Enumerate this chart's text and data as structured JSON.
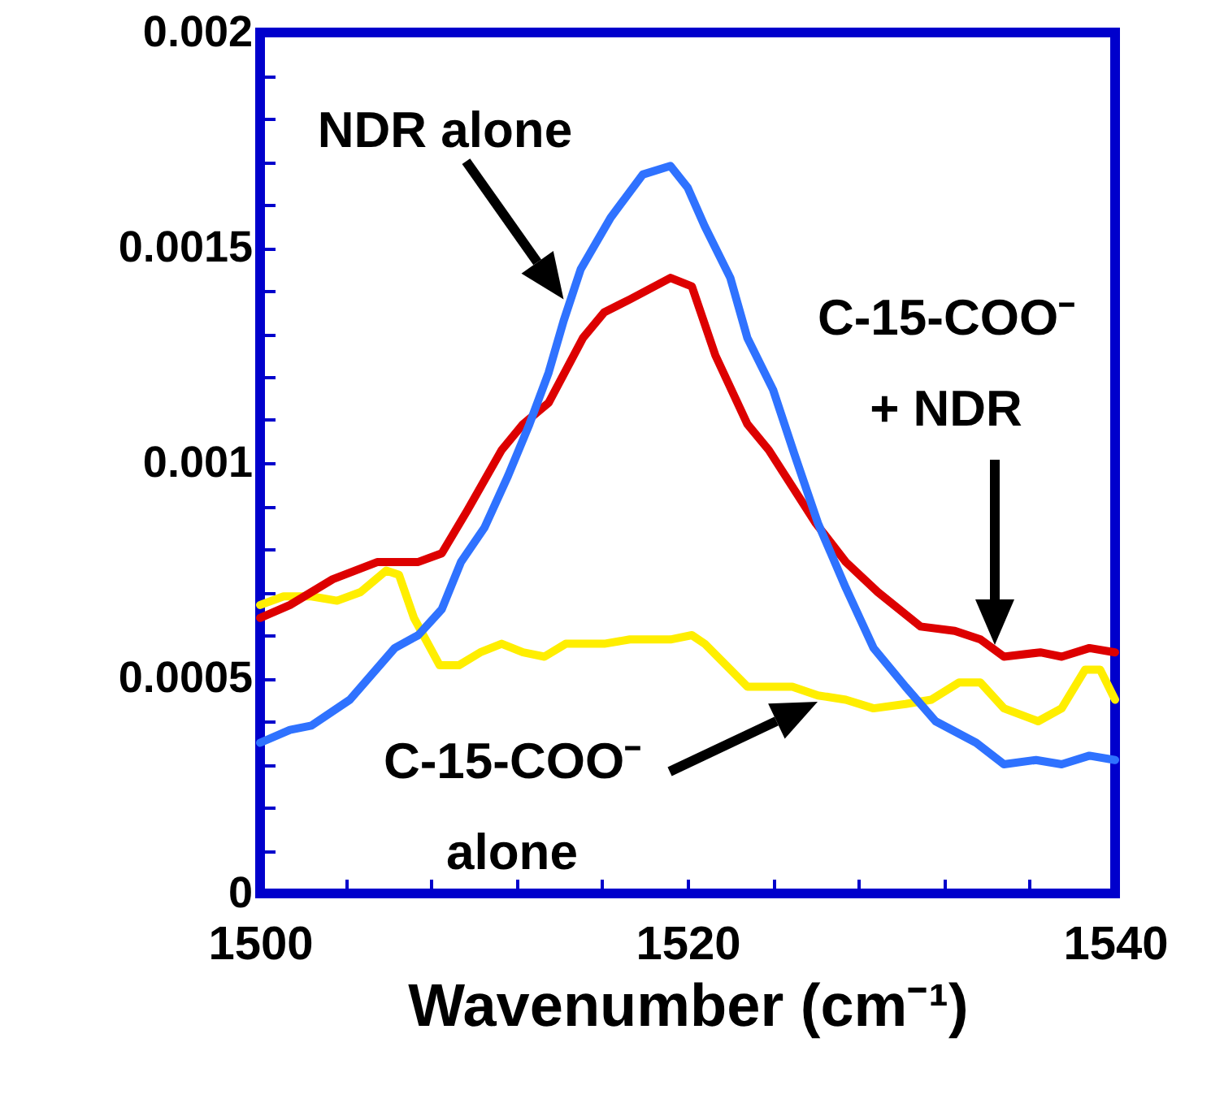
{
  "chart_data": {
    "type": "line",
    "xlabel": "Wavenumber (cm⁻¹)",
    "xlim": [
      1500,
      1540
    ],
    "ylim": [
      0,
      0.002
    ],
    "xticks": [
      1500,
      {
        "value": 1504,
        "label": null
      },
      {
        "value": 1508,
        "label": null
      },
      {
        "value": 1512,
        "label": null
      },
      {
        "value": 1516,
        "label": null
      },
      1520,
      {
        "value": 1524,
        "label": null
      },
      {
        "value": 1528,
        "label": null
      },
      {
        "value": 1532,
        "label": null
      },
      {
        "value": 1536,
        "label": null
      },
      1540
    ],
    "yticks": [
      0,
      {
        "value": 0.0001,
        "label": null
      },
      {
        "value": 0.0002,
        "label": null
      },
      {
        "value": 0.0003,
        "label": null
      },
      {
        "value": 0.0004,
        "label": null
      },
      0.0005,
      {
        "value": 0.0006,
        "label": null
      },
      {
        "value": 0.0007,
        "label": null
      },
      {
        "value": 0.0008,
        "label": null
      },
      {
        "value": 0.0009,
        "label": null
      },
      0.001,
      {
        "value": 0.0011,
        "label": null
      },
      {
        "value": 0.0012,
        "label": null
      },
      {
        "value": 0.0013,
        "label": null
      },
      {
        "value": 0.0014,
        "label": null
      },
      0.0015,
      {
        "value": 0.0016,
        "label": null
      },
      {
        "value": 0.0017,
        "label": null
      },
      {
        "value": 0.0018,
        "label": null
      },
      {
        "value": 0.0019,
        "label": null
      },
      0.002
    ],
    "grid": false,
    "marker": "none",
    "line_style": "solid",
    "series": [
      {
        "color": "#ffee00",
        "x": [
          1500,
          1501.1,
          1502.4,
          1503.6,
          1504.7,
          1505.9,
          1506.5,
          1507.2,
          1508.4,
          1509.3,
          1510.3,
          1511.3,
          1512.3,
          1513.3,
          1514.3,
          1516.1,
          1517.3,
          1519.2,
          1520.2,
          1520.8,
          1521.8,
          1522.8,
          1524.9,
          1526.1,
          1527.4,
          1528.7,
          1530.2,
          1531.4,
          1532.7,
          1533.7,
          1534.8,
          1536.4,
          1537.5,
          1538.6,
          1539.3,
          1540
        ],
        "values": [
          0.00067,
          0.00069,
          0.00069,
          0.00068,
          0.0007,
          0.00075,
          0.00074,
          0.00064,
          0.00053,
          0.00053,
          0.00056,
          0.00058,
          0.00056,
          0.00055,
          0.00058,
          0.00058,
          0.00059,
          0.00059,
          0.0006,
          0.00058,
          0.00053,
          0.00048,
          0.00048,
          0.00046,
          0.00045,
          0.00043,
          0.00044,
          0.00045,
          0.00049,
          0.00049,
          0.00043,
          0.0004,
          0.00043,
          0.00052,
          0.00052,
          0.00045
        ]
      },
      {
        "color": "#dd0000",
        "x": [
          1500,
          1501.4,
          1503.4,
          1505.5,
          1506.5,
          1507.4,
          1508.5,
          1509.7,
          1511.3,
          1512.3,
          1513.5,
          1515.1,
          1516.1,
          1517.3,
          1519.2,
          1520.2,
          1521.3,
          1522.8,
          1523.8,
          1526,
          1527.4,
          1528.9,
          1530.9,
          1532.5,
          1533.7,
          1534.8,
          1536.5,
          1537.5,
          1538.8,
          1540
        ],
        "values": [
          0.00064,
          0.00067,
          0.00073,
          0.00077,
          0.00077,
          0.00077,
          0.00079,
          0.00089,
          0.00103,
          0.00109,
          0.00114,
          0.00129,
          0.00135,
          0.00138,
          0.00143,
          0.00141,
          0.00125,
          0.00109,
          0.00103,
          0.00086,
          0.00077,
          0.0007,
          0.00062,
          0.00061,
          0.00059,
          0.00055,
          0.00056,
          0.00055,
          0.00057,
          0.00056
        ]
      },
      {
        "color": "#2f72ff",
        "x": [
          1500,
          1501.4,
          1502.4,
          1504.2,
          1506.3,
          1507.4,
          1508.5,
          1509.4,
          1510.5,
          1511.6,
          1512.6,
          1513.5,
          1514.2,
          1515,
          1516.4,
          1517.9,
          1519.2,
          1520,
          1520.8,
          1522,
          1522.8,
          1524,
          1525,
          1526.1,
          1527.4,
          1528.7,
          1530.2,
          1531.6,
          1533.5,
          1534.8,
          1536.3,
          1537.5,
          1538.8,
          1540
        ],
        "values": [
          0.00035,
          0.00038,
          0.00039,
          0.00045,
          0.00057,
          0.0006,
          0.00066,
          0.00077,
          0.00085,
          0.00097,
          0.00109,
          0.00121,
          0.00133,
          0.00145,
          0.00157,
          0.00167,
          0.00169,
          0.00164,
          0.00155,
          0.00143,
          0.00129,
          0.00117,
          0.00102,
          0.00086,
          0.00071,
          0.00057,
          0.00048,
          0.0004,
          0.00035,
          0.0003,
          0.00031,
          0.0003,
          0.00032,
          0.00031
        ]
      }
    ],
    "annotations": [
      {
        "text": "NDR alone",
        "x": 1514.2,
        "y": 0.00138
      },
      "C-15-COO⁻\n+ NDR",
      "C-15-COO⁻\nalone"
    ]
  }
}
